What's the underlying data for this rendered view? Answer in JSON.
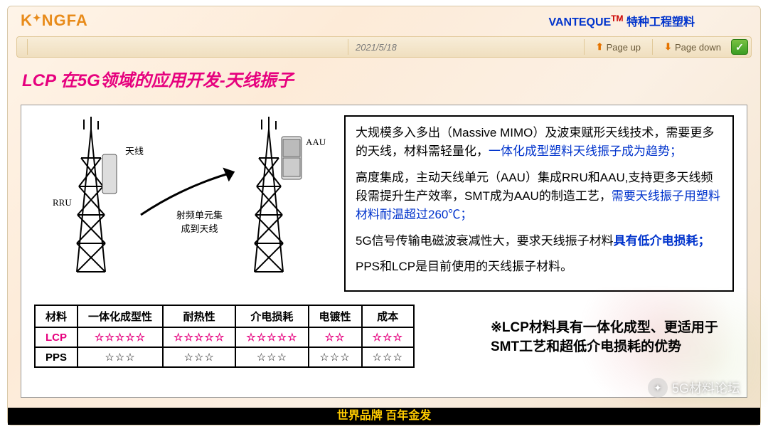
{
  "header": {
    "logo_text": "KINGFA",
    "brand_name": "VANTEQUE",
    "brand_tm": "TM",
    "brand_suffix": " 特种工程塑料",
    "date": "2021/5/18",
    "page_up": "Page up",
    "page_down": "Page down"
  },
  "title": "LCP 在5G领域的应用开发-天线振子",
  "diagram": {
    "label_rru": "RRU",
    "label_antenna": "天线",
    "label_aau": "AAU",
    "label_integration": "射频单元集\n成到天线"
  },
  "paragraphs": {
    "p1_a": "大规模多入多出（Massive MIMO）及波束赋形天线技术，需要更多的天线，材料需轻量化，",
    "p1_b": "一体化成型塑料天线振子成为趋势；",
    "p2_a": "高度集成，主动天线单元（AAU）集成RRU和AAU,支持更多天线频段需提升生产效率，SMT成为AAU的制造工艺，",
    "p2_b": "需要天线振子用塑料材料耐温超过260℃；",
    "p3_a": "5G信号传输电磁波衰减性大，要求天线振子材料",
    "p3_b": "具有低介电损耗；",
    "p4": "PPS和LCP是目前使用的天线振子材料。"
  },
  "table": {
    "headers": [
      "材料",
      "一体化成型性",
      "耐热性",
      "介电损耗",
      "电镀性",
      "成本"
    ],
    "rows": [
      {
        "name": "LCP",
        "cells": [
          "☆☆☆☆☆",
          "☆☆☆☆☆",
          "☆☆☆☆☆",
          "☆☆",
          "☆☆☆"
        ],
        "cls": "lcp-row"
      },
      {
        "name": "PPS",
        "cells": [
          "☆☆☆",
          "☆☆☆",
          "☆☆☆",
          "☆☆☆",
          "☆☆☆"
        ],
        "cls": ""
      }
    ]
  },
  "summary": "※LCP材料具有一体化成型、更适用于SMT工艺和超低介电损耗的优势",
  "footer": "世界品牌 百年金发",
  "watermark": "5G材料论坛",
  "colors": {
    "accent_pink": "#e6007e",
    "accent_blue": "#0033cc",
    "logo_orange": "#e88b1a",
    "footer_bg": "#000000",
    "footer_text": "#ffcc00"
  }
}
